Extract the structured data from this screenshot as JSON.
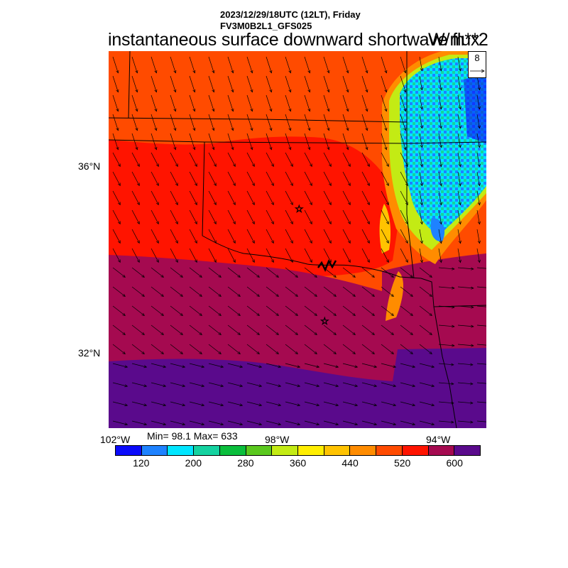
{
  "header": {
    "valid_time": "2023/12/29/18UTC (12LT), Friday",
    "model": "FV3M0B2L1_GFS025",
    "field_title": "instantaneous surface downward shortwave flux",
    "units": "W/m**2"
  },
  "map": {
    "lat_labels": [
      "36°N",
      "32°N"
    ],
    "lon_labels": [
      "102°W",
      "98°W",
      "94°W"
    ],
    "stats": "Min= 98.1 Max= 633",
    "vector_reference": "8",
    "markers": [
      "star",
      "star"
    ]
  },
  "colorbar": {
    "colors": [
      "#0a0afa",
      "#1e82ff",
      "#00e6ff",
      "#14d2a0",
      "#0abe3c",
      "#5ac81e",
      "#c3eb14",
      "#ffee00",
      "#ffc300",
      "#ff8c00",
      "#ff4b00",
      "#ff1400",
      "#a50a50",
      "#5a0a8c"
    ],
    "labels": [
      "120",
      "200",
      "280",
      "360",
      "440",
      "520",
      "600"
    ]
  },
  "colors": {
    "orange_red": "#ff4b00",
    "red": "#ff1400",
    "maroon": "#a50a50",
    "purple": "#5a0a8c",
    "cloud_cyan": "#00e6ff",
    "cloud_blue": "#1e82ff"
  }
}
